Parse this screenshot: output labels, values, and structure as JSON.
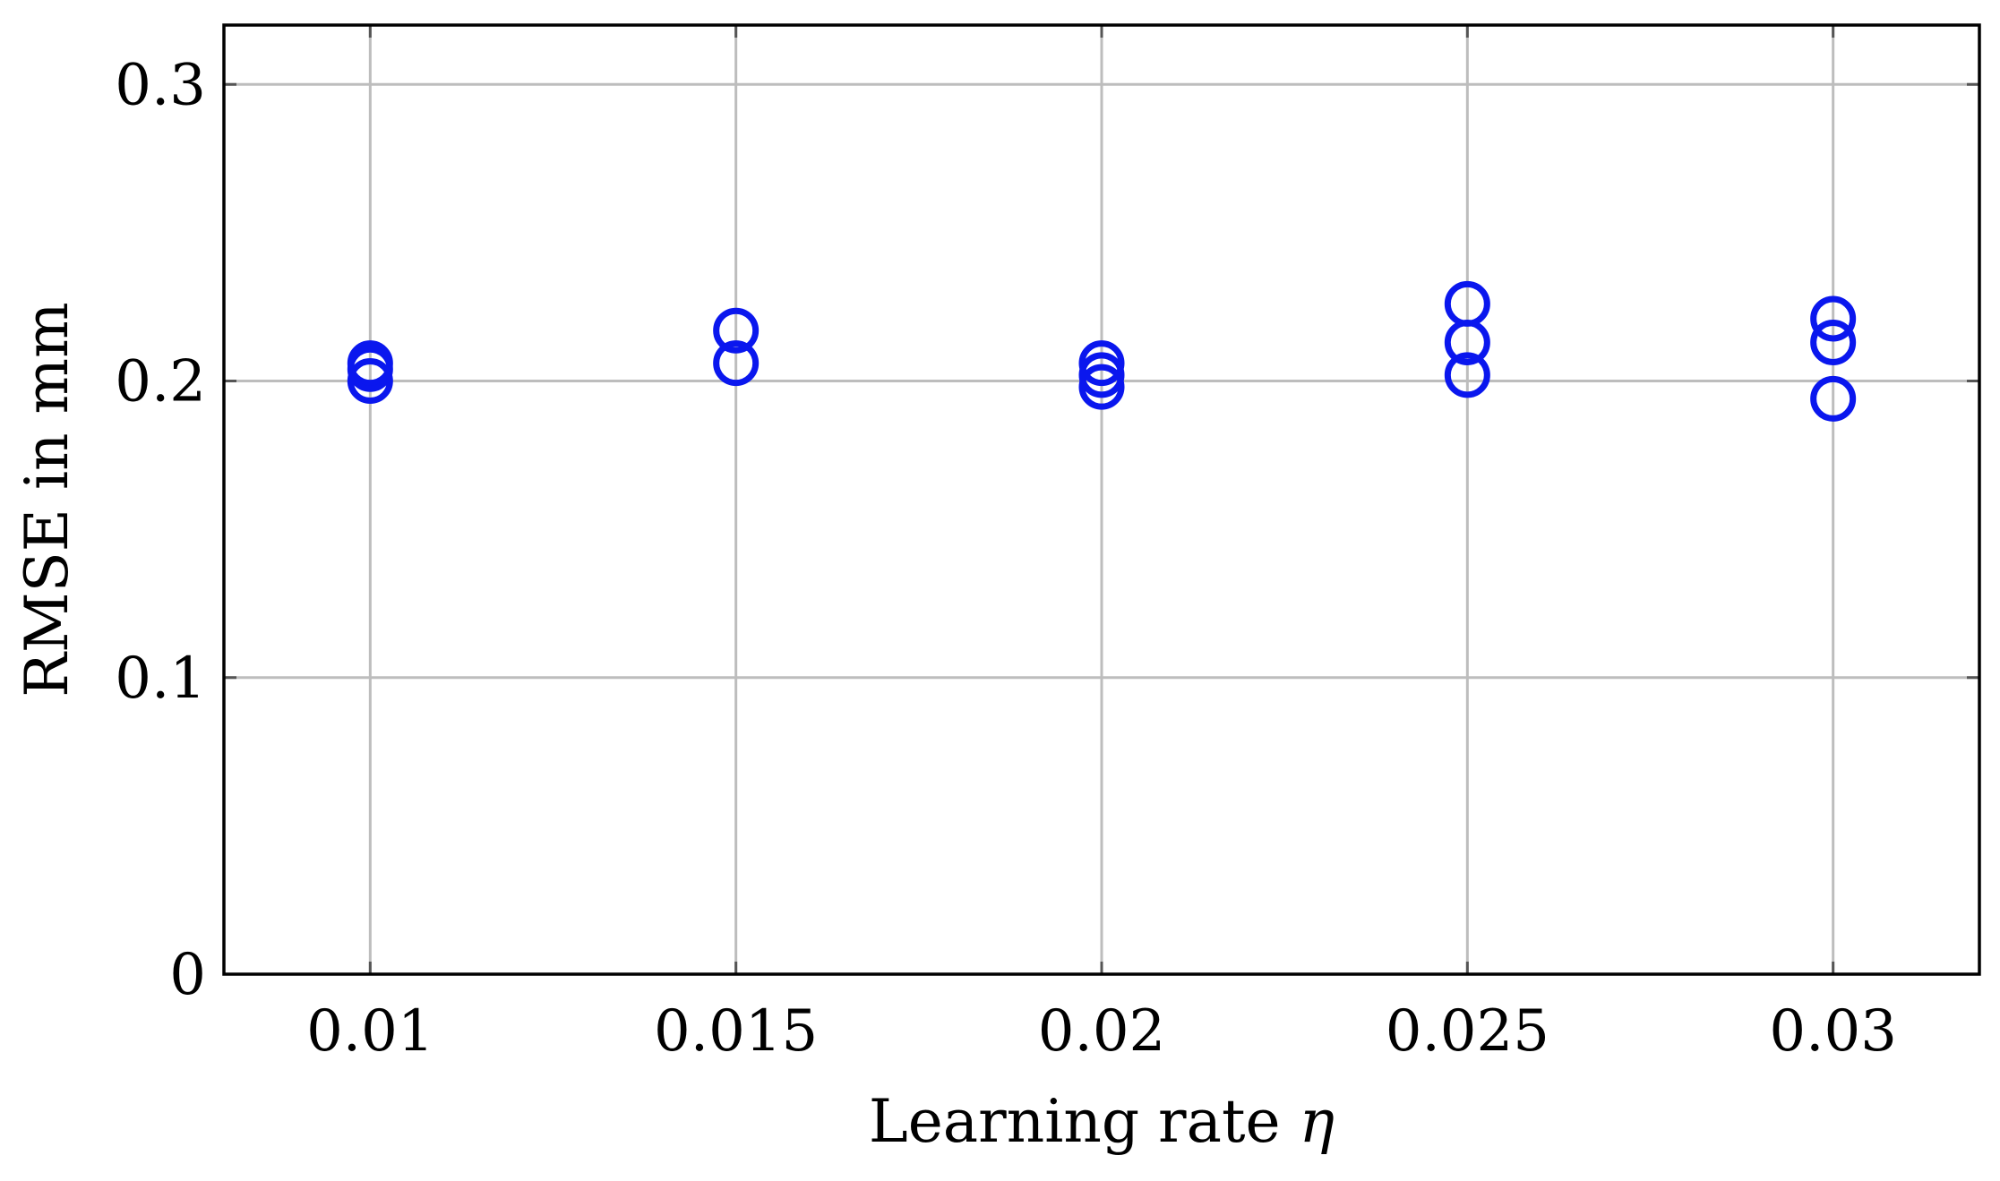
{
  "chart_data": {
    "type": "scatter",
    "title": "",
    "xlabel": "Learning rate ",
    "xlabel_symbol": "η",
    "ylabel": "RMSE in mm",
    "xlim": [
      0.008,
      0.032
    ],
    "ylim": [
      0,
      0.32
    ],
    "x_ticks": [
      0.01,
      0.015,
      0.02,
      0.025,
      0.03
    ],
    "x_tick_labels": [
      "0.01",
      "0.015",
      "0.02",
      "0.025",
      "0.03"
    ],
    "y_ticks": [
      0,
      0.1,
      0.2,
      0.3
    ],
    "y_tick_labels": [
      "0",
      "0.1",
      "0.2",
      "0.3"
    ],
    "grid": true,
    "legend": "none",
    "marker": "open-circle",
    "color": "#0a17ee",
    "points": [
      {
        "x": 0.01,
        "y": 0.206
      },
      {
        "x": 0.01,
        "y": 0.204
      },
      {
        "x": 0.01,
        "y": 0.2
      },
      {
        "x": 0.015,
        "y": 0.217
      },
      {
        "x": 0.015,
        "y": 0.206
      },
      {
        "x": 0.02,
        "y": 0.206
      },
      {
        "x": 0.02,
        "y": 0.202
      },
      {
        "x": 0.02,
        "y": 0.198
      },
      {
        "x": 0.025,
        "y": 0.226
      },
      {
        "x": 0.025,
        "y": 0.213
      },
      {
        "x": 0.025,
        "y": 0.202
      },
      {
        "x": 0.03,
        "y": 0.221
      },
      {
        "x": 0.03,
        "y": 0.213
      },
      {
        "x": 0.03,
        "y": 0.194
      }
    ]
  }
}
